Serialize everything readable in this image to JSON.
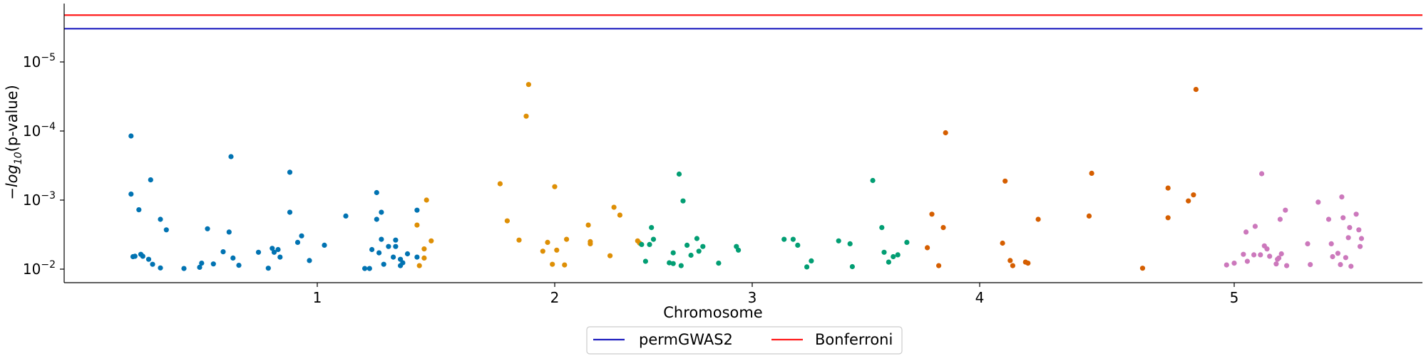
{
  "chart_data": {
    "type": "scatter",
    "title": "",
    "xlabel": "Chromosome",
    "ylabel_prefix": "−",
    "ylabel_log": "log",
    "ylabel_sub": "10",
    "ylabel_suffix": "(p-value)",
    "y_axis_inverted_log": true,
    "ylim": [
      0.0125,
      1.8e-06
    ],
    "y_ticks": [
      {
        "value": 1e-05,
        "base": "10",
        "exp": "−5"
      },
      {
        "value": 0.0001,
        "base": "10",
        "exp": "−4"
      },
      {
        "value": 0.001,
        "base": "10",
        "exp": "−3"
      },
      {
        "value": 0.01,
        "base": "10",
        "exp": "−2"
      }
    ],
    "x_ticks": [
      "1",
      "2",
      "3",
      "4",
      "5"
    ],
    "grid": false,
    "legend": {
      "placement": "bottom-center",
      "entries": [
        {
          "label": "permGWAS2",
          "color": "#1f1fbf"
        },
        {
          "label": "Bonferroni",
          "color": "#ff1a1a"
        }
      ]
    },
    "hlines": [
      {
        "label": "permGWAS2",
        "p": 3.3e-06,
        "color": "#1f1fbf"
      },
      {
        "label": "Bonferroni",
        "p": 2.1e-06,
        "color": "#ff1a1a"
      }
    ],
    "series": [
      {
        "chromosome": "1",
        "color": "#0173b2",
        "points": [
          [
            0.05,
            0.000118
          ],
          [
            0.05,
            0.00082
          ],
          [
            0.06,
            0.0066
          ],
          [
            0.07,
            0.0065
          ],
          [
            0.09,
            0.00138
          ],
          [
            0.1,
            0.0061
          ],
          [
            0.11,
            0.0065
          ],
          [
            0.14,
            0.0072
          ],
          [
            0.15,
            0.00051
          ],
          [
            0.16,
            0.0085
          ],
          [
            0.2,
            0.0096
          ],
          [
            0.2,
            0.0019
          ],
          [
            0.23,
            0.0027
          ],
          [
            0.32,
            0.0098
          ],
          [
            0.4,
            0.0094
          ],
          [
            0.41,
            0.0082
          ],
          [
            0.44,
            0.0026
          ],
          [
            0.47,
            0.0084
          ],
          [
            0.52,
            0.0056
          ],
          [
            0.55,
            0.0029
          ],
          [
            0.56,
            0.000235
          ],
          [
            0.57,
            0.0069
          ],
          [
            0.6,
            0.0088
          ],
          [
            0.7,
            0.0057
          ],
          [
            0.75,
            0.0097
          ],
          [
            0.77,
            0.005
          ],
          [
            0.78,
            0.0057
          ],
          [
            0.8,
            0.0052
          ],
          [
            0.81,
            0.0067
          ],
          [
            0.86,
            0.0015
          ],
          [
            0.86,
            0.000395
          ],
          [
            0.9,
            0.0041
          ],
          [
            0.92,
            0.0033
          ],
          [
            0.96,
            0.0075
          ],
          [
            1.03,
            0.0045
          ],
          [
            1.12,
            0.0017
          ],
          [
            1.2,
            0.0098
          ],
          [
            1.22,
            0.0098
          ],
          [
            1.23,
            0.0052
          ],
          [
            1.25,
            0.00078
          ],
          [
            1.25,
            0.0019
          ],
          [
            1.26,
            0.0058
          ],
          [
            1.27,
            0.0015
          ],
          [
            1.27,
            0.0037
          ],
          [
            1.28,
            0.0085
          ],
          [
            1.3,
            0.0047
          ],
          [
            1.32,
            0.0067
          ],
          [
            1.33,
            0.0047
          ],
          [
            1.33,
            0.0038
          ],
          [
            1.35,
            0.0089
          ],
          [
            1.35,
            0.0072
          ],
          [
            1.36,
            0.0081
          ],
          [
            1.38,
            0.006
          ],
          [
            1.42,
            0.0014
          ],
          [
            1.42,
            0.0067
          ]
        ]
      },
      {
        "chromosome": "2",
        "color": "#de8f05",
        "points": [
          [
            1.42,
            0.0023
          ],
          [
            1.43,
            0.0089
          ],
          [
            1.45,
            0.0069
          ],
          [
            1.45,
            0.0051
          ],
          [
            1.46,
            0.001
          ],
          [
            1.48,
            0.0039
          ],
          [
            1.77,
            0.00058
          ],
          [
            1.8,
            0.002
          ],
          [
            1.85,
            0.0038
          ],
          [
            1.88,
            6.1e-05
          ],
          [
            1.89,
            2.12e-05
          ],
          [
            1.95,
            0.0055
          ],
          [
            1.97,
            0.0041
          ],
          [
            1.99,
            0.0085
          ],
          [
            2.0,
            0.00064
          ],
          [
            2.01,
            0.0053
          ],
          [
            2.05,
            0.0087
          ],
          [
            2.06,
            0.0037
          ],
          [
            2.17,
            0.0023
          ],
          [
            2.18,
            0.0043
          ],
          [
            2.18,
            0.004
          ],
          [
            2.28,
            0.0064
          ],
          [
            2.3,
            0.00127
          ],
          [
            2.33,
            0.00165
          ],
          [
            2.42,
            0.0039
          ],
          [
            2.43,
            0.0042
          ]
        ]
      },
      {
        "chromosome": "3",
        "color": "#029e73",
        "points": [
          [
            2.44,
            0.0044
          ],
          [
            2.46,
            0.0077
          ],
          [
            2.48,
            0.0044
          ],
          [
            2.49,
            0.0025
          ],
          [
            2.5,
            0.0037
          ],
          [
            2.58,
            0.0081
          ],
          [
            2.6,
            0.0058
          ],
          [
            2.6,
            0.0083
          ],
          [
            2.63,
            0.00042
          ],
          [
            2.64,
            0.0089
          ],
          [
            2.65,
            0.00103
          ],
          [
            2.67,
            0.0045
          ],
          [
            2.69,
            0.0063
          ],
          [
            2.72,
            0.0036
          ],
          [
            2.73,
            0.0055
          ],
          [
            2.75,
            0.0047
          ],
          [
            2.83,
            0.0082
          ],
          [
            2.92,
            0.0047
          ],
          [
            2.93,
            0.0053
          ],
          [
            3.14,
            0.0037
          ],
          [
            3.18,
            0.0037
          ],
          [
            3.2,
            0.0045
          ],
          [
            3.24,
            0.0093
          ],
          [
            3.26,
            0.0076
          ],
          [
            3.38,
            0.0039
          ],
          [
            3.43,
            0.0043
          ],
          [
            3.44,
            0.0092
          ],
          [
            3.53,
            0.00052
          ],
          [
            3.57,
            0.0025
          ],
          [
            3.58,
            0.0057
          ],
          [
            3.6,
            0.0079
          ],
          [
            3.62,
            0.0066
          ],
          [
            3.64,
            0.0062
          ],
          [
            3.68,
            0.0041
          ]
        ]
      },
      {
        "chromosome": "4",
        "color": "#d55e00",
        "points": [
          [
            3.77,
            0.0049
          ],
          [
            3.79,
            0.0016
          ],
          [
            3.82,
            0.0089
          ],
          [
            3.84,
            0.0025
          ],
          [
            3.85,
            0.000106
          ],
          [
            4.09,
            0.0042
          ],
          [
            4.1,
            0.00053
          ],
          [
            4.12,
            0.0075
          ],
          [
            4.13,
            0.0089
          ],
          [
            4.18,
            0.0079
          ],
          [
            4.19,
            0.0082
          ],
          [
            4.23,
            0.0019
          ],
          [
            4.43,
            0.0017
          ],
          [
            4.44,
            0.00041
          ],
          [
            4.64,
            0.0097
          ],
          [
            4.74,
            0.00067
          ],
          [
            4.74,
            0.0018
          ],
          [
            4.82,
            0.00103
          ],
          [
            4.84,
            0.00084
          ],
          [
            4.85,
            2.5e-05
          ]
        ]
      },
      {
        "chromosome": "5",
        "color": "#cc78bc",
        "points": [
          [
            4.97,
            0.0087
          ],
          [
            5.0,
            0.0082
          ],
          [
            5.07,
            0.0061
          ],
          [
            5.09,
            0.0029
          ],
          [
            5.1,
            0.0077
          ],
          [
            5.15,
            0.0062
          ],
          [
            5.16,
            0.0024
          ],
          [
            5.2,
            0.0062
          ],
          [
            5.21,
            0.000415
          ],
          [
            5.23,
            0.0046
          ],
          [
            5.25,
            0.0051
          ],
          [
            5.27,
            0.0065
          ],
          [
            5.32,
            0.0084
          ],
          [
            5.33,
            0.0072
          ],
          [
            5.34,
            0.0069
          ],
          [
            5.35,
            0.0019
          ],
          [
            5.36,
            0.006
          ],
          [
            5.39,
            0.0014
          ],
          [
            5.4,
            0.0089
          ],
          [
            5.56,
            0.0043
          ],
          [
            5.58,
            0.0086
          ],
          [
            5.64,
            0.00107
          ],
          [
            5.72,
            0.0019
          ],
          [
            5.74,
            0.0043
          ],
          [
            5.75,
            0.0066
          ],
          [
            5.79,
            0.0059
          ],
          [
            5.81,
            0.0086
          ],
          [
            5.82,
            0.0009
          ],
          [
            5.83,
            0.0018
          ],
          [
            5.85,
            0.0068
          ],
          [
            5.87,
            0.0035
          ],
          [
            5.88,
            0.0025
          ],
          [
            5.89,
            0.0091
          ],
          [
            5.93,
            0.0016
          ],
          [
            5.95,
            0.0027
          ],
          [
            5.96,
            0.0047
          ],
          [
            5.97,
            0.0036
          ]
        ]
      }
    ]
  }
}
